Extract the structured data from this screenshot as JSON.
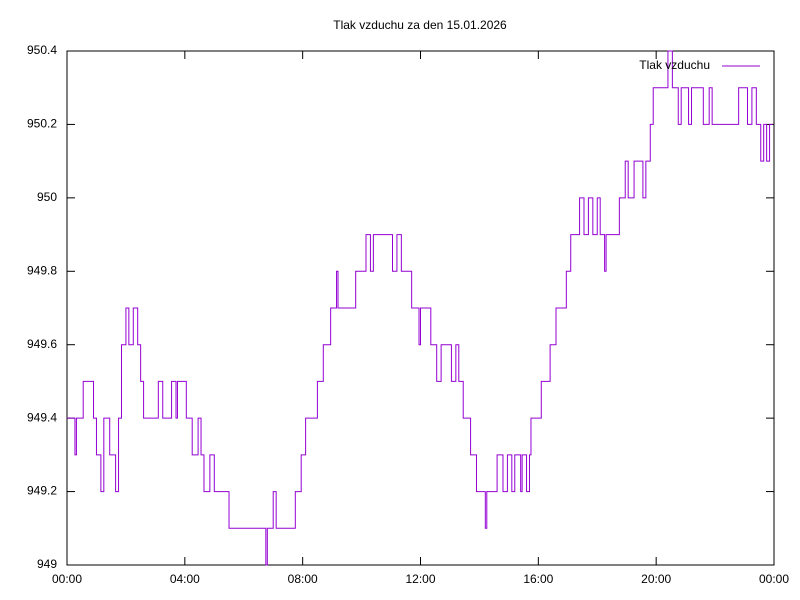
{
  "chart_data": {
    "type": "line",
    "step": true,
    "title": "Tlak vzduchu za den 15.01.2026",
    "xlim": [
      0,
      24
    ],
    "xticks": [
      {
        "value": 0,
        "label": "00:00"
      },
      {
        "value": 4,
        "label": "04:00"
      },
      {
        "value": 8,
        "label": "08:00"
      },
      {
        "value": 12,
        "label": "12:00"
      },
      {
        "value": 16,
        "label": "16:00"
      },
      {
        "value": 20,
        "label": "20:00"
      },
      {
        "value": 24,
        "label": "00:00"
      }
    ],
    "ylim": [
      949,
      950.4
    ],
    "yticks": [
      949,
      949.2,
      949.4,
      949.6,
      949.8,
      950,
      950.2,
      950.4
    ],
    "legend": "top-right",
    "series": [
      {
        "name": "Tlak vzduchu",
        "color": "#9400d3",
        "x": [
          0,
          0.27,
          0.32,
          0.55,
          0.9,
          1.0,
          1.15,
          1.25,
          1.45,
          1.65,
          1.75,
          1.85,
          2.0,
          2.1,
          2.25,
          2.4,
          2.5,
          2.6,
          3.1,
          3.25,
          3.55,
          3.7,
          3.75,
          4.05,
          4.25,
          4.45,
          4.55,
          4.65,
          4.85,
          5.0,
          5.5,
          6.65,
          6.75,
          6.8,
          7.0,
          7.1,
          7.75,
          7.95,
          8.1,
          8.5,
          8.7,
          8.95,
          9.15,
          9.2,
          9.8,
          10.15,
          10.3,
          10.4,
          11.05,
          11.2,
          11.35,
          11.7,
          11.95,
          12.0,
          12.35,
          12.55,
          12.7,
          13.05,
          13.2,
          13.3,
          13.45,
          13.7,
          13.9,
          14.2,
          14.25,
          14.6,
          14.8,
          14.95,
          15.1,
          15.2,
          15.4,
          15.45,
          15.6,
          15.7,
          15.75,
          16.1,
          16.4,
          16.6,
          16.95,
          17.1,
          17.4,
          17.55,
          17.7,
          17.85,
          18.0,
          18.1,
          18.25,
          18.3,
          18.75,
          18.95,
          19.05,
          19.25,
          19.55,
          19.65,
          19.8,
          19.9,
          20.4,
          20.55,
          20.75,
          20.85,
          21.1,
          21.2,
          21.6,
          21.8,
          21.9,
          22.8,
          23.1,
          23.25,
          23.4,
          23.55,
          23.65,
          23.75,
          23.85,
          23.95
        ],
        "values": [
          949.4,
          949.3,
          949.4,
          949.5,
          949.4,
          949.3,
          949.2,
          949.4,
          949.3,
          949.2,
          949.4,
          949.6,
          949.7,
          949.6,
          949.7,
          949.6,
          949.5,
          949.4,
          949.5,
          949.4,
          949.5,
          949.4,
          949.5,
          949.4,
          949.3,
          949.4,
          949.3,
          949.2,
          949.3,
          949.2,
          949.1,
          949.1,
          949.0,
          949.1,
          949.2,
          949.1,
          949.2,
          949.3,
          949.4,
          949.5,
          949.6,
          949.7,
          949.8,
          949.7,
          949.8,
          949.9,
          949.8,
          949.9,
          949.8,
          949.9,
          949.8,
          949.7,
          949.6,
          949.7,
          949.6,
          949.5,
          949.6,
          949.5,
          949.6,
          949.5,
          949.4,
          949.3,
          949.2,
          949.1,
          949.2,
          949.3,
          949.2,
          949.3,
          949.2,
          949.3,
          949.2,
          949.3,
          949.2,
          949.3,
          949.4,
          949.5,
          949.6,
          949.7,
          949.8,
          949.9,
          950.0,
          949.9,
          950.0,
          949.9,
          950.0,
          949.9,
          949.8,
          949.9,
          950.0,
          950.1,
          950.0,
          950.1,
          950.0,
          950.1,
          950.2,
          950.3,
          950.4,
          950.3,
          950.2,
          950.3,
          950.2,
          950.3,
          950.2,
          950.3,
          950.2,
          950.3,
          950.2,
          950.3,
          950.2,
          950.1,
          950.2,
          950.1,
          950.2,
          950.2
        ]
      }
    ]
  }
}
